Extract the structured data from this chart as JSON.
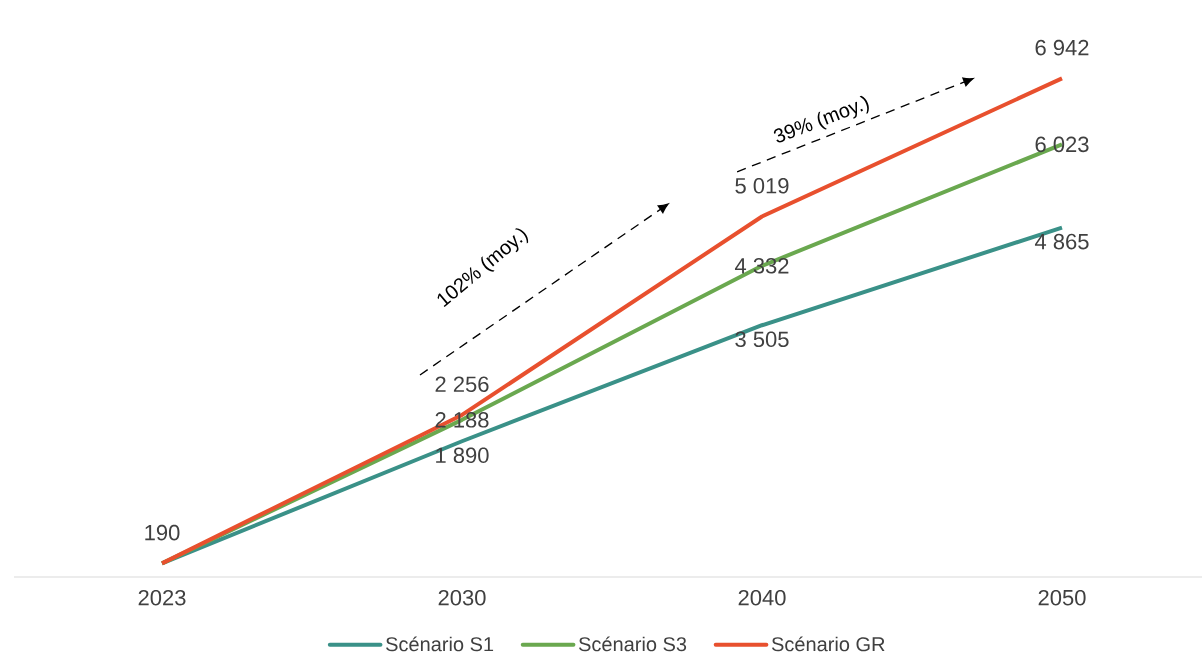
{
  "chart_data": {
    "type": "line",
    "categories": [
      "2023",
      "2030",
      "2040",
      "2050"
    ],
    "series": [
      {
        "name": "Scénario S1",
        "color": "#3a9188",
        "values": [
          190,
          1890,
          3505,
          4865
        ],
        "value_labels": [
          "190",
          "1 890",
          "3 505",
          "4 865"
        ]
      },
      {
        "name": "Scénario S3",
        "color": "#6aa84f",
        "values": [
          190,
          2188,
          4332,
          6023
        ],
        "value_labels": [
          null,
          "2 188",
          "4 332",
          "6 023"
        ]
      },
      {
        "name": "Scénario GR",
        "color": "#e8502e",
        "values": [
          190,
          2256,
          5019,
          6942
        ],
        "value_labels": [
          null,
          "2 256",
          "5 019",
          "6 942"
        ]
      }
    ],
    "legend": "bottom",
    "marker": "none",
    "line_style": "solid",
    "annotations": [
      "102% (moy.)",
      "39% (moy.)"
    ]
  }
}
